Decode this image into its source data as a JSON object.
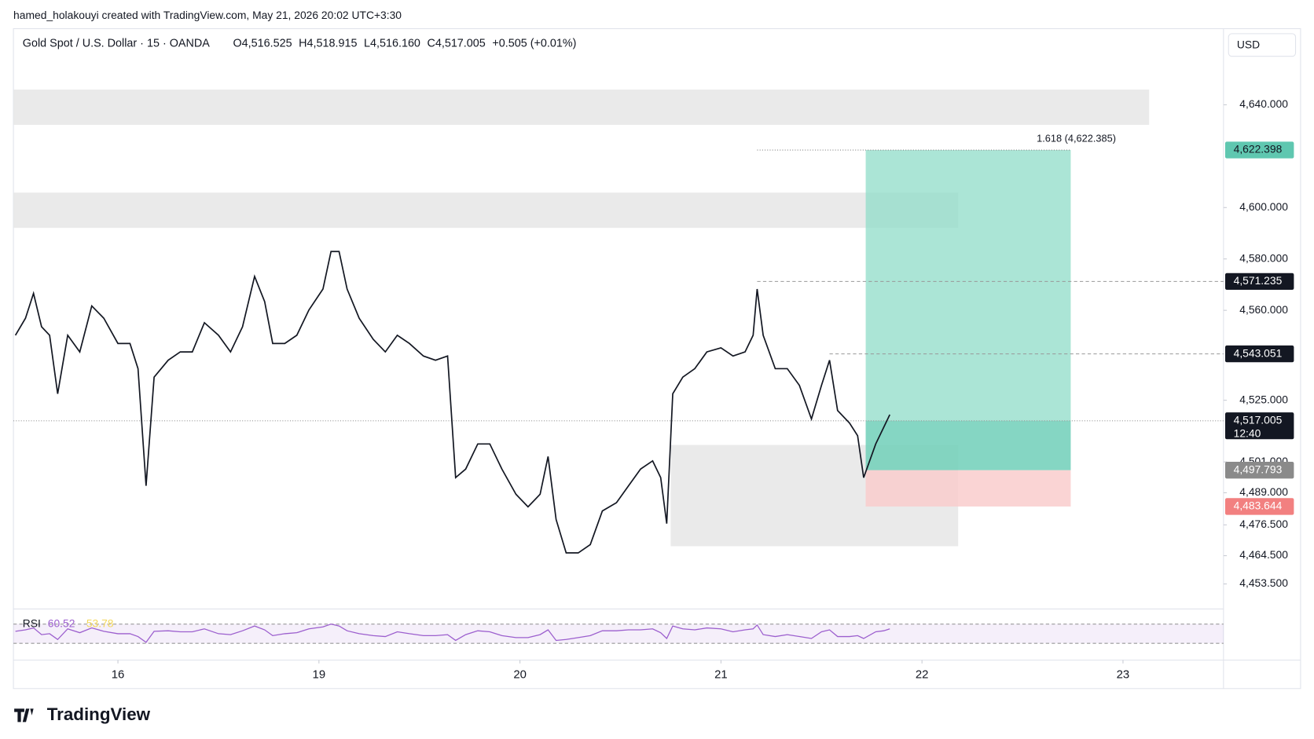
{
  "header": "hamed_holakouyi created with TradingView.com, May 21, 2026 20:02 UTC+3:30",
  "logo": "TradingView",
  "chart_data": {
    "type": "line",
    "symbol": "Gold Spot / U.S. Dollar · 15 · OANDA",
    "ohlc": [
      "O4,516.525",
      "H4,518.915",
      "L4,516.160",
      "C4,517.005",
      "+0.505 (+0.01%)"
    ],
    "currency": "USD",
    "xlim": [
      -0.52,
      5.5
    ],
    "xticks": [
      {
        "value": 0,
        "label": "16"
      },
      {
        "value": 1,
        "label": "19"
      },
      {
        "value": 2,
        "label": "20"
      },
      {
        "value": 3,
        "label": "21"
      },
      {
        "value": 4,
        "label": "22"
      },
      {
        "value": 5,
        "label": "23"
      }
    ],
    "ylim": [
      4444.4,
      4669.3
    ],
    "yticks": [
      {
        "value": 4640,
        "label": "4,640.000"
      },
      {
        "value": 4600,
        "label": "4,600.000"
      },
      {
        "value": 4580,
        "label": "4,580.000"
      },
      {
        "value": 4560,
        "label": "4,560.000"
      },
      {
        "value": 4525,
        "label": "4,525.000"
      },
      {
        "value": 4501,
        "label": "4,501.000"
      },
      {
        "value": 4489,
        "label": "4,489.000"
      },
      {
        "value": 4476.5,
        "label": "4,476.500"
      },
      {
        "value": 4464.5,
        "label": "4,464.500"
      },
      {
        "value": 4453.5,
        "label": "4,453.500"
      }
    ],
    "x": [
      -0.51,
      -0.46,
      -0.42,
      -0.38,
      -0.34,
      -0.3,
      -0.25,
      -0.19,
      -0.13,
      -0.07,
      0.0,
      0.06,
      0.1,
      0.14,
      0.18,
      0.25,
      0.31,
      0.37,
      0.43,
      0.5,
      0.56,
      0.62,
      0.68,
      0.73,
      0.77,
      0.83,
      0.89,
      0.95,
      1.02,
      1.06,
      1.1,
      1.14,
      1.2,
      1.27,
      1.33,
      1.39,
      1.45,
      1.52,
      1.58,
      1.64,
      1.68,
      1.73,
      1.79,
      1.85,
      1.91,
      1.98,
      2.04,
      2.1,
      2.14,
      2.18,
      2.23,
      2.29,
      2.35,
      2.41,
      2.48,
      2.54,
      2.6,
      2.66,
      2.7,
      2.73,
      2.76,
      2.81,
      2.87,
      2.93,
      3.0,
      3.06,
      3.12,
      3.16,
      3.18,
      3.21,
      3.27,
      3.33,
      3.39,
      3.45,
      3.5,
      3.54,
      3.58,
      3.64,
      3.68,
      3.71,
      3.77,
      3.81,
      3.84
    ],
    "series": [
      {
        "color": "#131722",
        "values": [
          4550.3,
          4556.9,
          4566.6,
          4553.6,
          4550.3,
          4527.5,
          4550.3,
          4543.8,
          4561.7,
          4556.9,
          4547.1,
          4547.1,
          4537.3,
          4491.7,
          4534.0,
          4540.6,
          4543.8,
          4543.8,
          4555.2,
          4550.3,
          4543.8,
          4553.6,
          4573.2,
          4563.4,
          4547.1,
          4547.1,
          4550.3,
          4560.1,
          4568.3,
          4582.9,
          4582.9,
          4568.3,
          4556.9,
          4548.7,
          4543.8,
          4550.3,
          4547.1,
          4542.2,
          4540.6,
          4542.2,
          4494.9,
          4498.2,
          4508.0,
          4508.0,
          4498.2,
          4488.4,
          4483.5,
          4488.4,
          4503.1,
          4478.6,
          4465.6,
          4465.6,
          4468.8,
          4481.9,
          4485.1,
          4491.7,
          4498.2,
          4501.4,
          4494.9,
          4477.0,
          4527.5,
          4534.0,
          4537.3,
          4543.8,
          4545.4,
          4542.2,
          4543.8,
          4550.3,
          4568.3,
          4550.3,
          4537.3,
          4537.3,
          4530.8,
          4517.7,
          4530.8,
          4540.6,
          4521.0,
          4516.1,
          4511.2,
          4494.9,
          4508.0,
          4514.5,
          4519.4
        ]
      }
    ],
    "zones": [
      {
        "ylim": [
          4632.2,
          4645.9
        ],
        "xlim": [
          -0.52,
          5.13
        ]
      },
      {
        "ylim": [
          4592.1,
          4605.8
        ],
        "xlim": [
          -0.52,
          4.18
        ]
      },
      {
        "ylim": [
          4468.2,
          4507.6
        ],
        "xlim": [
          2.75,
          4.18
        ]
      }
    ],
    "position": {
      "xlim": [
        3.72,
        4.74
      ],
      "entry": 4497.793,
      "target": 4622.398,
      "stop": 4483.644,
      "profit_color": "#8fdcc8",
      "loss_color": "#f9cdcd"
    },
    "fib": {
      "label": "1.618 (4,622.385)",
      "value": 4622.385,
      "from": 3.18,
      "to": 4.74
    },
    "badges": [
      {
        "value": 4622.398,
        "label": "4,622.398",
        "color": "#5fc7b0",
        "text_color": "#131722"
      },
      {
        "value": 4571.235,
        "label": "4,571.235",
        "color": "#131722",
        "text_color": "#ffffff",
        "line_from": 3.18
      },
      {
        "value": 4543.051,
        "label": "4,543.051",
        "color": "#131722",
        "text_color": "#ffffff",
        "line_from": 3.54
      },
      {
        "value": 4517.005,
        "label": "4,517.005",
        "color": "#131722",
        "text_color": "#ffffff",
        "line_from": -0.52,
        "countdown": "12:40"
      },
      {
        "value": 4497.793,
        "label": "4,497.793",
        "color": "#8a8a8a",
        "text_color": "#ffffff"
      },
      {
        "value": 4483.644,
        "label": "4,483.644",
        "color": "#f28080",
        "text_color": "#ffffff"
      }
    ],
    "rsi": {
      "name": "RSI",
      "labels": [
        "60.52",
        "53.78"
      ],
      "label_colors": [
        "#9c5fce",
        "#f2d75c"
      ],
      "ylim": [
        9.1,
        87.4
      ],
      "bands": [
        30,
        70
      ],
      "color": "#9c5fce",
      "values": [
        55,
        58,
        62,
        48,
        50,
        38,
        60,
        52,
        62,
        55,
        50,
        50,
        44,
        32,
        55,
        56,
        54,
        54,
        60,
        50,
        48,
        56,
        66,
        58,
        46,
        50,
        52,
        60,
        64,
        70,
        66,
        56,
        50,
        46,
        44,
        54,
        50,
        46,
        46,
        48,
        36,
        48,
        56,
        54,
        46,
        42,
        42,
        48,
        58,
        36,
        38,
        42,
        46,
        56,
        56,
        58,
        58,
        60,
        52,
        40,
        66,
        60,
        58,
        62,
        60,
        54,
        58,
        60,
        68,
        48,
        44,
        48,
        44,
        40,
        54,
        58,
        44,
        44,
        46,
        40,
        54,
        56,
        60
      ]
    }
  }
}
